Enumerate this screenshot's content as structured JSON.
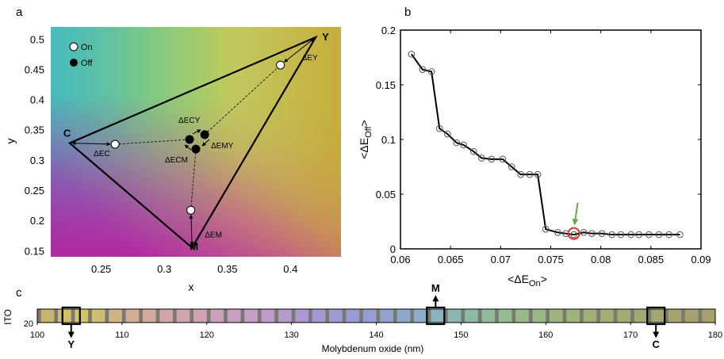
{
  "panel_labels": {
    "a": "a",
    "b": "b",
    "c": "c"
  },
  "chart_data": [
    {
      "type": "scatter",
      "panel": "a",
      "xlabel": "x",
      "ylabel": "y",
      "xlim": [
        0.21,
        0.44
      ],
      "ylim": [
        0.14,
        0.52
      ],
      "xticks": [
        0.25,
        0.3,
        0.35,
        0.4
      ],
      "xtick_labels": [
        "0.25",
        "0.3",
        "0.35",
        "0.4"
      ],
      "yticks": [
        0.15,
        0.2,
        0.25,
        0.3,
        0.35,
        0.4,
        0.45,
        0.5
      ],
      "ytick_labels": [
        "0.15",
        "0.2",
        "0.25",
        "0.3",
        "0.35",
        "0.4",
        "0.45",
        "0.5"
      ],
      "legend": {
        "placement": "top-left",
        "entries": [
          {
            "label": "On",
            "style": "open"
          },
          {
            "label": "Off",
            "style": "filled"
          }
        ]
      },
      "vertices": [
        {
          "label": "C",
          "x": 0.225,
          "y": 0.328
        },
        {
          "label": "M",
          "x": 0.322,
          "y": 0.155
        },
        {
          "label": "Y",
          "x": 0.42,
          "y": 0.503
        }
      ],
      "on_points": [
        {
          "x": 0.261,
          "y": 0.326
        },
        {
          "x": 0.321,
          "y": 0.217
        },
        {
          "x": 0.392,
          "y": 0.457
        }
      ],
      "off_points": [
        {
          "x": 0.32,
          "y": 0.334
        },
        {
          "x": 0.332,
          "y": 0.342
        },
        {
          "x": 0.325,
          "y": 0.318
        }
      ],
      "annotations": [
        "ΔEC",
        "ΔEM",
        "ΔEY",
        "ΔECY",
        "ΔEMY",
        "ΔECM"
      ]
    },
    {
      "type": "line",
      "panel": "b",
      "xlabel_main": "<ΔE",
      "xlabel_sub": "On",
      "xlabel_end": ">",
      "ylabel_main": "<ΔE",
      "ylabel_sub": "Off",
      "ylabel_end": ">",
      "xlim": [
        0.06,
        0.09
      ],
      "ylim": [
        0,
        0.2
      ],
      "xticks": [
        0.06,
        0.065,
        0.07,
        0.075,
        0.08,
        0.085,
        0.09
      ],
      "xtick_labels": [
        "0.06",
        "0.065",
        "0.07",
        "0.075",
        "0.08",
        "0.085",
        "0.09"
      ],
      "yticks": [
        0,
        0.05,
        0.1,
        0.15,
        0.2
      ],
      "ytick_labels": [
        "0",
        "0.05",
        "0.1",
        "0.15",
        "0.2"
      ],
      "grid": false,
      "series": [
        {
          "x": [
            0.0611,
            0.0622,
            0.0631,
            0.0639,
            0.0647,
            0.0656,
            0.0663,
            0.0673,
            0.0681,
            0.0691,
            0.0702,
            0.0711,
            0.072,
            0.0729,
            0.0737,
            0.0745,
            0.0757,
            0.0765,
            0.0773,
            0.0783,
            0.0791,
            0.0801,
            0.0811,
            0.082,
            0.083,
            0.0838,
            0.0848,
            0.0858,
            0.0868,
            0.0879
          ],
          "y": [
            0.178,
            0.164,
            0.162,
            0.11,
            0.105,
            0.097,
            0.095,
            0.089,
            0.083,
            0.082,
            0.082,
            0.075,
            0.068,
            0.068,
            0.068,
            0.018,
            0.015,
            0.014,
            0.013,
            0.015,
            0.014,
            0.014,
            0.013,
            0.013,
            0.013,
            0.013,
            0.013,
            0.013,
            0.013,
            0.013
          ]
        }
      ],
      "highlight": {
        "x": 0.0773,
        "y": 0.014
      }
    },
    {
      "type": "heatmap",
      "panel": "c",
      "xlabel": "Molybdenum oxide (nm)",
      "ylabel": "ITO",
      "ytick_labels": [
        "20"
      ],
      "xlim": [
        100,
        180
      ],
      "xticks": [
        100,
        110,
        120,
        130,
        140,
        150,
        160,
        170,
        180
      ],
      "xtick_labels": [
        "100",
        "110",
        "120",
        "130",
        "140",
        "150",
        "160",
        "170",
        "180"
      ],
      "cell_step": 2,
      "cell_colors": [
        "#c8b46e",
        "#d2c066",
        "#d6c46a",
        "#cfbd72",
        "#d0b487",
        "#d3ae96",
        "#d4aa9f",
        "#d2a6a8",
        "#d1a4b0",
        "#cfa2b6",
        "#cca0bc",
        "#c9a0c0",
        "#c39ec6",
        "#bd9ccb",
        "#b59acf",
        "#ad98d2",
        "#a598d4",
        "#9f99d4",
        "#9a9bd4",
        "#959ed3",
        "#91a2d1",
        "#8ea7cd",
        "#8cacc7",
        "#8bb2bf",
        "#8bb6b4",
        "#8db9a8",
        "#91bb9c",
        "#95bb92",
        "#98b98a",
        "#9ab884",
        "#9cb67e",
        "#9eb47a",
        "#a0b176",
        "#a1ae74",
        "#a2ab72",
        "#a3a870",
        "#a4a56f",
        "#a5a36e",
        "#a6a16e",
        "#a7a06e"
      ],
      "highlights": [
        {
          "label": "Y",
          "x": 104,
          "direction": "down"
        },
        {
          "label": "M",
          "x": 147,
          "direction": "up"
        },
        {
          "label": "C",
          "x": 173,
          "direction": "down"
        }
      ]
    }
  ]
}
